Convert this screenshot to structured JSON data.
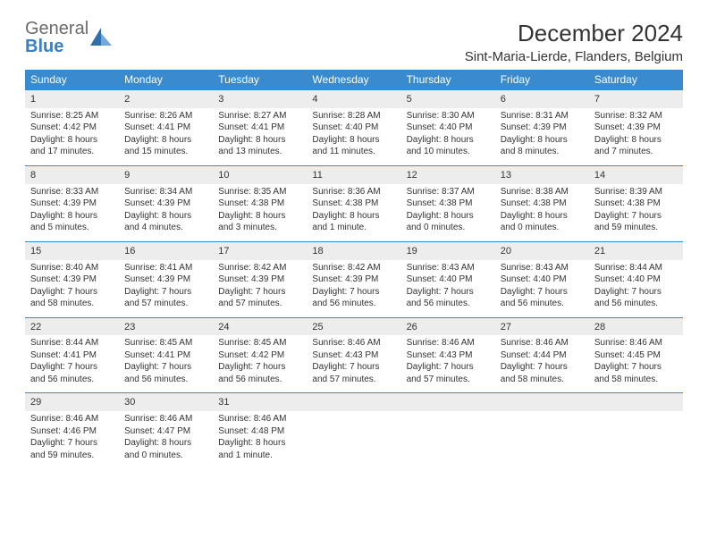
{
  "brand": {
    "word1": "General",
    "word2": "Blue"
  },
  "title": "December 2024",
  "location": "Sint-Maria-Lierde, Flanders, Belgium",
  "colors": {
    "header_bg": "#3a8bce",
    "header_text": "#ffffff",
    "daynum_bg": "#ededed",
    "rule": "#3a8bce",
    "logo_gray": "#6b6b6b",
    "logo_blue": "#3a7fc4"
  },
  "weekdays": [
    "Sunday",
    "Monday",
    "Tuesday",
    "Wednesday",
    "Thursday",
    "Friday",
    "Saturday"
  ],
  "weeks": [
    [
      {
        "n": "1",
        "sunrise": "Sunrise: 8:25 AM",
        "sunset": "Sunset: 4:42 PM",
        "d1": "Daylight: 8 hours",
        "d2": "and 17 minutes."
      },
      {
        "n": "2",
        "sunrise": "Sunrise: 8:26 AM",
        "sunset": "Sunset: 4:41 PM",
        "d1": "Daylight: 8 hours",
        "d2": "and 15 minutes."
      },
      {
        "n": "3",
        "sunrise": "Sunrise: 8:27 AM",
        "sunset": "Sunset: 4:41 PM",
        "d1": "Daylight: 8 hours",
        "d2": "and 13 minutes."
      },
      {
        "n": "4",
        "sunrise": "Sunrise: 8:28 AM",
        "sunset": "Sunset: 4:40 PM",
        "d1": "Daylight: 8 hours",
        "d2": "and 11 minutes."
      },
      {
        "n": "5",
        "sunrise": "Sunrise: 8:30 AM",
        "sunset": "Sunset: 4:40 PM",
        "d1": "Daylight: 8 hours",
        "d2": "and 10 minutes."
      },
      {
        "n": "6",
        "sunrise": "Sunrise: 8:31 AM",
        "sunset": "Sunset: 4:39 PM",
        "d1": "Daylight: 8 hours",
        "d2": "and 8 minutes."
      },
      {
        "n": "7",
        "sunrise": "Sunrise: 8:32 AM",
        "sunset": "Sunset: 4:39 PM",
        "d1": "Daylight: 8 hours",
        "d2": "and 7 minutes."
      }
    ],
    [
      {
        "n": "8",
        "sunrise": "Sunrise: 8:33 AM",
        "sunset": "Sunset: 4:39 PM",
        "d1": "Daylight: 8 hours",
        "d2": "and 5 minutes."
      },
      {
        "n": "9",
        "sunrise": "Sunrise: 8:34 AM",
        "sunset": "Sunset: 4:39 PM",
        "d1": "Daylight: 8 hours",
        "d2": "and 4 minutes."
      },
      {
        "n": "10",
        "sunrise": "Sunrise: 8:35 AM",
        "sunset": "Sunset: 4:38 PM",
        "d1": "Daylight: 8 hours",
        "d2": "and 3 minutes."
      },
      {
        "n": "11",
        "sunrise": "Sunrise: 8:36 AM",
        "sunset": "Sunset: 4:38 PM",
        "d1": "Daylight: 8 hours",
        "d2": "and 1 minute."
      },
      {
        "n": "12",
        "sunrise": "Sunrise: 8:37 AM",
        "sunset": "Sunset: 4:38 PM",
        "d1": "Daylight: 8 hours",
        "d2": "and 0 minutes."
      },
      {
        "n": "13",
        "sunrise": "Sunrise: 8:38 AM",
        "sunset": "Sunset: 4:38 PM",
        "d1": "Daylight: 8 hours",
        "d2": "and 0 minutes."
      },
      {
        "n": "14",
        "sunrise": "Sunrise: 8:39 AM",
        "sunset": "Sunset: 4:38 PM",
        "d1": "Daylight: 7 hours",
        "d2": "and 59 minutes."
      }
    ],
    [
      {
        "n": "15",
        "sunrise": "Sunrise: 8:40 AM",
        "sunset": "Sunset: 4:39 PM",
        "d1": "Daylight: 7 hours",
        "d2": "and 58 minutes."
      },
      {
        "n": "16",
        "sunrise": "Sunrise: 8:41 AM",
        "sunset": "Sunset: 4:39 PM",
        "d1": "Daylight: 7 hours",
        "d2": "and 57 minutes."
      },
      {
        "n": "17",
        "sunrise": "Sunrise: 8:42 AM",
        "sunset": "Sunset: 4:39 PM",
        "d1": "Daylight: 7 hours",
        "d2": "and 57 minutes."
      },
      {
        "n": "18",
        "sunrise": "Sunrise: 8:42 AM",
        "sunset": "Sunset: 4:39 PM",
        "d1": "Daylight: 7 hours",
        "d2": "and 56 minutes."
      },
      {
        "n": "19",
        "sunrise": "Sunrise: 8:43 AM",
        "sunset": "Sunset: 4:40 PM",
        "d1": "Daylight: 7 hours",
        "d2": "and 56 minutes."
      },
      {
        "n": "20",
        "sunrise": "Sunrise: 8:43 AM",
        "sunset": "Sunset: 4:40 PM",
        "d1": "Daylight: 7 hours",
        "d2": "and 56 minutes."
      },
      {
        "n": "21",
        "sunrise": "Sunrise: 8:44 AM",
        "sunset": "Sunset: 4:40 PM",
        "d1": "Daylight: 7 hours",
        "d2": "and 56 minutes."
      }
    ],
    [
      {
        "n": "22",
        "sunrise": "Sunrise: 8:44 AM",
        "sunset": "Sunset: 4:41 PM",
        "d1": "Daylight: 7 hours",
        "d2": "and 56 minutes."
      },
      {
        "n": "23",
        "sunrise": "Sunrise: 8:45 AM",
        "sunset": "Sunset: 4:41 PM",
        "d1": "Daylight: 7 hours",
        "d2": "and 56 minutes."
      },
      {
        "n": "24",
        "sunrise": "Sunrise: 8:45 AM",
        "sunset": "Sunset: 4:42 PM",
        "d1": "Daylight: 7 hours",
        "d2": "and 56 minutes."
      },
      {
        "n": "25",
        "sunrise": "Sunrise: 8:46 AM",
        "sunset": "Sunset: 4:43 PM",
        "d1": "Daylight: 7 hours",
        "d2": "and 57 minutes."
      },
      {
        "n": "26",
        "sunrise": "Sunrise: 8:46 AM",
        "sunset": "Sunset: 4:43 PM",
        "d1": "Daylight: 7 hours",
        "d2": "and 57 minutes."
      },
      {
        "n": "27",
        "sunrise": "Sunrise: 8:46 AM",
        "sunset": "Sunset: 4:44 PM",
        "d1": "Daylight: 7 hours",
        "d2": "and 58 minutes."
      },
      {
        "n": "28",
        "sunrise": "Sunrise: 8:46 AM",
        "sunset": "Sunset: 4:45 PM",
        "d1": "Daylight: 7 hours",
        "d2": "and 58 minutes."
      }
    ],
    [
      {
        "n": "29",
        "sunrise": "Sunrise: 8:46 AM",
        "sunset": "Sunset: 4:46 PM",
        "d1": "Daylight: 7 hours",
        "d2": "and 59 minutes."
      },
      {
        "n": "30",
        "sunrise": "Sunrise: 8:46 AM",
        "sunset": "Sunset: 4:47 PM",
        "d1": "Daylight: 8 hours",
        "d2": "and 0 minutes."
      },
      {
        "n": "31",
        "sunrise": "Sunrise: 8:46 AM",
        "sunset": "Sunset: 4:48 PM",
        "d1": "Daylight: 8 hours",
        "d2": "and 1 minute."
      },
      null,
      null,
      null,
      null
    ]
  ]
}
